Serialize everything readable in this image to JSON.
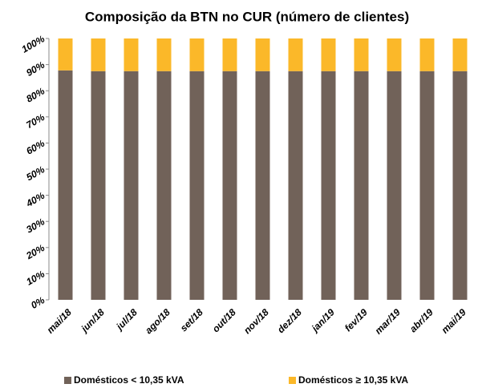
{
  "chart_data": {
    "type": "stacked_bar",
    "title": "Composição da BTN no CUR (número de clientes)",
    "categories": [
      "mai/18",
      "jun/18",
      "jul/18",
      "ago/18",
      "set/18",
      "out/18",
      "nov/18",
      "dez/18",
      "jan/19",
      "fev/19",
      "mar/19",
      "abr/19",
      "mai/19"
    ],
    "series": [
      {
        "name": "Domésticos < 10,35 kVA",
        "color": "#716259",
        "values": [
          87.8,
          87.5,
          87.5,
          87.5,
          87.5,
          87.5,
          87.5,
          87.5,
          87.5,
          87.5,
          87.5,
          87.5,
          87.5
        ]
      },
      {
        "name": "Domésticos ≥ 10,35 kVA",
        "color": "#fbb829",
        "values": [
          12.2,
          12.5,
          12.5,
          12.5,
          12.5,
          12.5,
          12.5,
          12.5,
          12.5,
          12.5,
          12.5,
          12.5,
          12.5
        ]
      }
    ],
    "ylim": [
      0,
      100
    ],
    "yticks": [
      {
        "value": 0,
        "label": "0%"
      },
      {
        "value": 10,
        "label": "10%"
      },
      {
        "value": 20,
        "label": "20%"
      },
      {
        "value": 30,
        "label": "30%"
      },
      {
        "value": 40,
        "label": "40%"
      },
      {
        "value": 50,
        "label": "50%"
      },
      {
        "value": 60,
        "label": "60%"
      },
      {
        "value": 70,
        "label": "70%"
      },
      {
        "value": 80,
        "label": "80%"
      },
      {
        "value": 90,
        "label": "90%"
      },
      {
        "value": 100,
        "label": "100%"
      }
    ],
    "grid": false,
    "legend": "bottom"
  }
}
